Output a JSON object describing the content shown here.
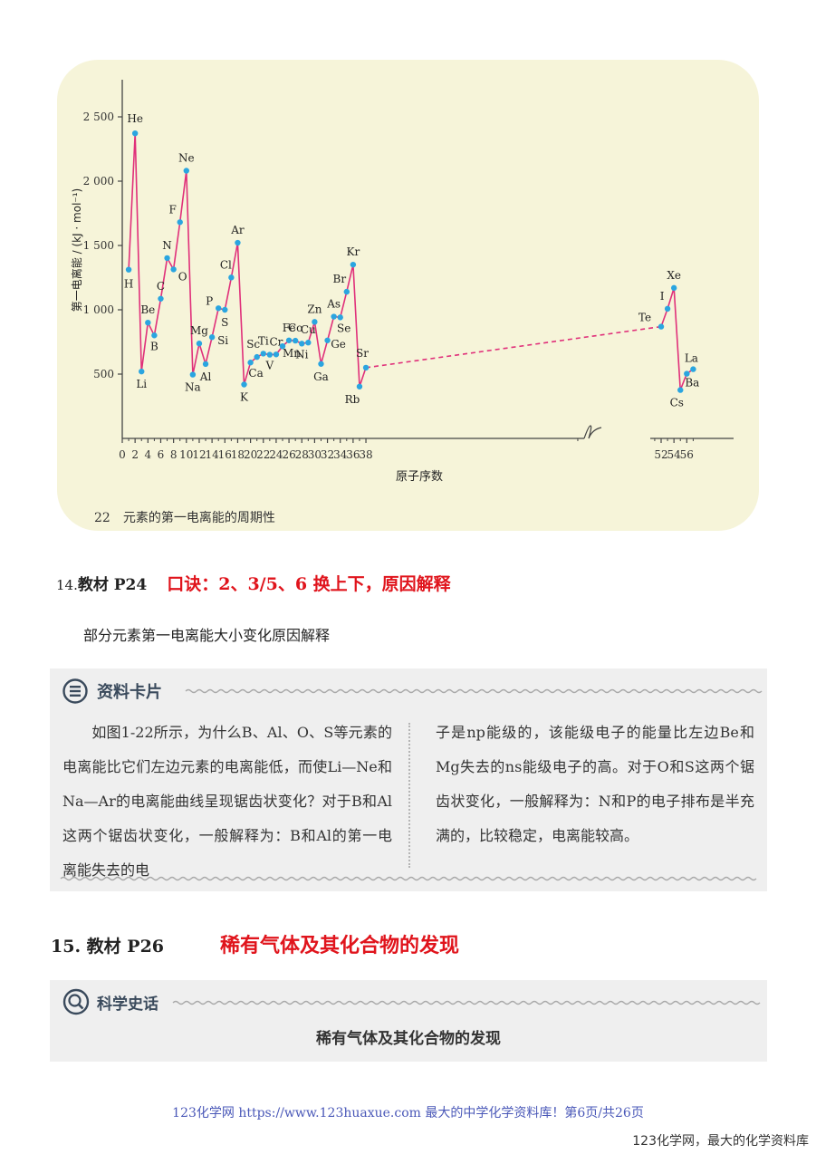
{
  "figure": {
    "caption": "22　元素的第一电离能的周期性",
    "colors": {
      "background": "#f6f4d9",
      "line": "#e0307a",
      "point": "#2aa5e0"
    }
  },
  "chart_data": {
    "type": "line",
    "xlabel": "原子序数",
    "ylabel": "第一电离能 / (kJ · mol⁻¹)",
    "ylim": [
      0,
      2700
    ],
    "y_ticks": [
      "500",
      "1 000",
      "1 500",
      "2 000",
      "2 500"
    ],
    "x_ticks": [
      "0",
      "2",
      "4",
      "6",
      "8",
      "10",
      "12",
      "14",
      "16",
      "18",
      "20",
      "22",
      "24",
      "26",
      "28",
      "30",
      "32",
      "34",
      "36",
      "38",
      "52",
      "54",
      "56"
    ],
    "axis_break": [
      38,
      52
    ],
    "series": [
      {
        "points": [
          {
            "z": 1,
            "label": "H",
            "value": 1312
          },
          {
            "z": 2,
            "label": "He",
            "value": 2372
          },
          {
            "z": 3,
            "label": "Li",
            "value": 520
          },
          {
            "z": 4,
            "label": "Be",
            "value": 900
          },
          {
            "z": 5,
            "label": "B",
            "value": 801
          },
          {
            "z": 6,
            "label": "C",
            "value": 1086
          },
          {
            "z": 7,
            "label": "N",
            "value": 1402
          },
          {
            "z": 8,
            "label": "O",
            "value": 1314
          },
          {
            "z": 9,
            "label": "F",
            "value": 1681
          },
          {
            "z": 10,
            "label": "Ne",
            "value": 2081
          },
          {
            "z": 11,
            "label": "Na",
            "value": 496
          },
          {
            "z": 12,
            "label": "Mg",
            "value": 738
          },
          {
            "z": 13,
            "label": "Al",
            "value": 578
          },
          {
            "z": 14,
            "label": "Si",
            "value": 787
          },
          {
            "z": 15,
            "label": "P",
            "value": 1012
          },
          {
            "z": 16,
            "label": "S",
            "value": 1000
          },
          {
            "z": 17,
            "label": "Cl",
            "value": 1251
          },
          {
            "z": 18,
            "label": "Ar",
            "value": 1521
          },
          {
            "z": 19,
            "label": "K",
            "value": 419
          },
          {
            "z": 20,
            "label": "Ca",
            "value": 590
          },
          {
            "z": 21,
            "label": "Sc",
            "value": 633
          },
          {
            "z": 22,
            "label": "Ti",
            "value": 659
          },
          {
            "z": 23,
            "label": "V",
            "value": 651
          },
          {
            "z": 24,
            "label": "Cr",
            "value": 653
          },
          {
            "z": 25,
            "label": "Mn",
            "value": 717
          },
          {
            "z": 26,
            "label": "Fe",
            "value": 762
          },
          {
            "z": 27,
            "label": "Co",
            "value": 760
          },
          {
            "z": 28,
            "label": "Ni",
            "value": 737
          },
          {
            "z": 29,
            "label": "Cu",
            "value": 745
          },
          {
            "z": 30,
            "label": "Zn",
            "value": 906
          },
          {
            "z": 31,
            "label": "Ga",
            "value": 579
          },
          {
            "z": 32,
            "label": "Ge",
            "value": 762
          },
          {
            "z": 33,
            "label": "As",
            "value": 947
          },
          {
            "z": 34,
            "label": "Se",
            "value": 941
          },
          {
            "z": 35,
            "label": "Br",
            "value": 1140
          },
          {
            "z": 36,
            "label": "Kr",
            "value": 1351
          },
          {
            "z": 37,
            "label": "Rb",
            "value": 403
          },
          {
            "z": 38,
            "label": "Sr",
            "value": 550
          },
          {
            "z": 52,
            "label": "Te",
            "value": 869
          },
          {
            "z": 53,
            "label": "I",
            "value": 1008
          },
          {
            "z": 54,
            "label": "Xe",
            "value": 1170
          },
          {
            "z": 55,
            "label": "Cs",
            "value": 376
          },
          {
            "z": 56,
            "label": "Ba",
            "value": 503
          },
          {
            "z": 57,
            "label": "La",
            "value": 538
          }
        ]
      }
    ]
  },
  "sec14": {
    "prefix": "14.",
    "title": "教材 P24",
    "mnemonic": "口诀：2、3/5、6 换上下，原因解释"
  },
  "sec14_sub": "部分元素第一电离能大小变化原因解释",
  "card1": {
    "title": "资料卡片",
    "left_text": "　　如图1-22所示，为什么B、Al、O、S等元素的电离能比它们左边元素的电离能低，而使Li—Ne和Na—Ar的电离能曲线呈现锯齿状变化？对于B和Al这两个锯齿状变化，一般解释为：B和Al的第一电离能失去的电",
    "right_text": "子是np能级的，该能级电子的能量比左边Be和Mg失去的ns能级电子的高。对于O和S这两个锯齿状变化，一般解释为：N和P的电子排布是半充满的，比较稳定，电离能较高。"
  },
  "sec15": {
    "title": "15. 教材 P26",
    "red": "稀有气体及其化合物的发现"
  },
  "card2": {
    "title": "科学史话",
    "subtitle": "稀有气体及其化合物的发现"
  },
  "footer": "123化学网 https://www.123huaxue.com 最大的中学化学资料库！第6页/共26页",
  "watermark": "123化学网，最大的化学资料库"
}
